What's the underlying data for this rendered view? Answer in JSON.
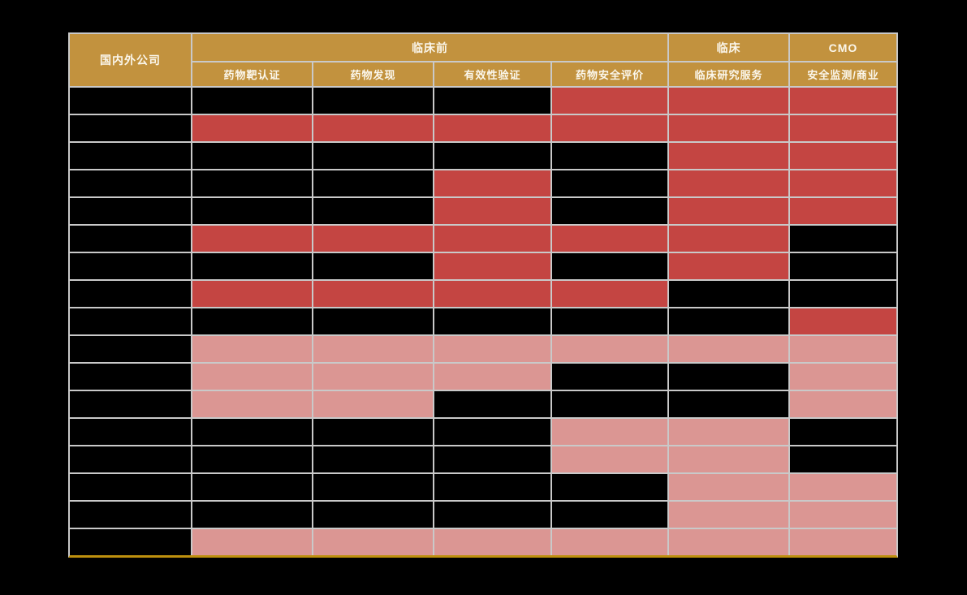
{
  "chart_data": {
    "type": "heatmap",
    "row_header_label": "国内外公司",
    "column_groups": [
      {
        "label": "临床前",
        "columns": [
          "药物靶认证",
          "药物发现",
          "有效性验证",
          "药物安全评价"
        ]
      },
      {
        "label": "临床",
        "columns": [
          "临床研究服务"
        ]
      },
      {
        "label": "CMO",
        "columns": [
          "安全监测/商业"
        ]
      }
    ],
    "cell_states": [
      "black",
      "red",
      "pink"
    ],
    "rows": [
      [
        "black",
        "black",
        "black",
        "red",
        "red",
        "red"
      ],
      [
        "red",
        "red",
        "red",
        "red",
        "red",
        "red"
      ],
      [
        "black",
        "black",
        "black",
        "black",
        "red",
        "red"
      ],
      [
        "black",
        "black",
        "red",
        "black",
        "red",
        "red"
      ],
      [
        "black",
        "black",
        "red",
        "black",
        "red",
        "red"
      ],
      [
        "red",
        "red",
        "red",
        "red",
        "red",
        "black"
      ],
      [
        "black",
        "black",
        "red",
        "black",
        "red",
        "black"
      ],
      [
        "red",
        "red",
        "red",
        "red",
        "black",
        "black"
      ],
      [
        "black",
        "black",
        "black",
        "black",
        "black",
        "red"
      ],
      [
        "pink",
        "pink",
        "pink",
        "pink",
        "pink",
        "pink"
      ],
      [
        "pink",
        "pink",
        "pink",
        "black",
        "black",
        "pink"
      ],
      [
        "pink",
        "pink",
        "black",
        "black",
        "black",
        "pink"
      ],
      [
        "black",
        "black",
        "black",
        "pink",
        "pink",
        "black"
      ],
      [
        "black",
        "black",
        "black",
        "pink",
        "pink",
        "black"
      ],
      [
        "black",
        "black",
        "black",
        "black",
        "pink",
        "pink"
      ],
      [
        "black",
        "black",
        "black",
        "black",
        "pink",
        "pink"
      ],
      [
        "pink",
        "pink",
        "pink",
        "pink",
        "pink",
        "pink"
      ]
    ]
  },
  "colors": {
    "page_bg": "#000000",
    "header_bg": "#C2923E",
    "header_text": "#FBF7EC",
    "red": "#C44542",
    "pink": "#DB9693",
    "cell_black": "#000000",
    "grid_line": "#C9C9C9",
    "bottom_border": "#BE900E"
  }
}
